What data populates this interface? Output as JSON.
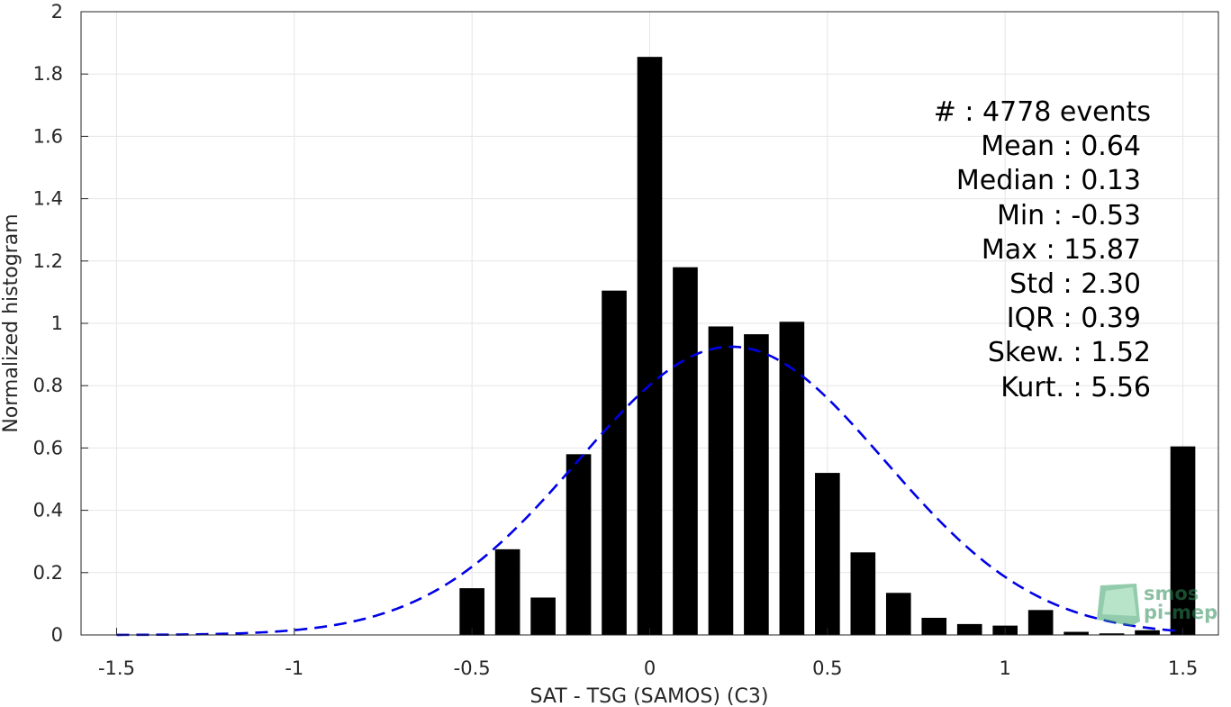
{
  "chart_data": {
    "type": "bar",
    "xlabel": "SAT - TSG (SAMOS) (C3)",
    "ylabel": "Normalized histogram",
    "xlim": [
      -1.6,
      1.6
    ],
    "ylim": [
      0,
      2
    ],
    "x_ticks": [
      "-1.5",
      "-1",
      "-0.5",
      "0",
      "0.5",
      "1",
      "1.5"
    ],
    "x_tick_values": [
      -1.5,
      -1,
      -0.5,
      0,
      0.5,
      1,
      1.5
    ],
    "y_ticks": [
      "0",
      "0.2",
      "0.4",
      "0.6",
      "0.8",
      "1",
      "1.2",
      "1.4",
      "1.6",
      "1.8",
      "2"
    ],
    "y_tick_values": [
      0,
      0.2,
      0.4,
      0.6,
      0.8,
      1,
      1.2,
      1.4,
      1.6,
      1.8,
      2
    ],
    "grid": true,
    "bar_width": 0.07,
    "bars": {
      "x": [
        -0.5,
        -0.4,
        -0.3,
        -0.2,
        -0.1,
        0.0,
        0.1,
        0.2,
        0.3,
        0.4,
        0.5,
        0.6,
        0.7,
        0.8,
        0.9,
        1.0,
        1.1,
        1.2,
        1.3,
        1.4,
        1.5
      ],
      "values": [
        0.15,
        0.275,
        0.12,
        0.58,
        1.105,
        1.855,
        1.18,
        0.99,
        0.965,
        1.005,
        0.52,
        0.265,
        0.135,
        0.055,
        0.035,
        0.03,
        0.08,
        0.01,
        0.005,
        0.015,
        0.605
      ],
      "color": "#000000"
    },
    "fit_curve": {
      "style": "dashed",
      "color": "#0000e6",
      "mean": 0.23,
      "std": 0.43,
      "peak": 0.925,
      "x_range": [
        -1.5,
        1.5
      ]
    },
    "stats": [
      "#  : 4778 events",
      "Mean : 0.64",
      "Median : 0.13",
      "Min : -0.53",
      "Max : 15.87",
      "Std : 2.30",
      "IQR : 0.39",
      "Skew. : 1.52",
      "Kurt. : 5.56"
    ]
  },
  "logo": {
    "line1": "smos",
    "line2": "pi-mep",
    "color": "#2e8b57"
  }
}
